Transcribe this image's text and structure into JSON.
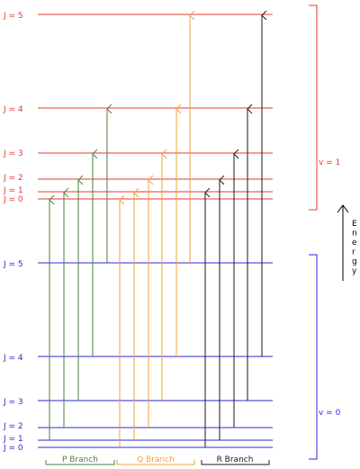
{
  "colors": {
    "upper": "#e8382f",
    "lower": "#2a2ad6",
    "p_branch": "#4e7f3e",
    "q_branch": "#f2a03a",
    "r_branch": "#1a1a1a"
  },
  "upper_levels": [
    {
      "label": "J = 5"
    },
    {
      "label": "J = 4"
    },
    {
      "label": "J = 3"
    },
    {
      "label": "J = 2"
    },
    {
      "label": "J = 1"
    },
    {
      "label": "J = 0"
    }
  ],
  "lower_levels": [
    {
      "label": "J = 5"
    },
    {
      "label": "J = 4"
    },
    {
      "label": "J = 3"
    },
    {
      "label": "J = 2"
    },
    {
      "label": "J = 1"
    },
    {
      "label": "J = 0"
    }
  ],
  "vib": {
    "upper_label": "v = 1",
    "lower_label": "v = 0"
  },
  "energy_label": "Energy",
  "branches": [
    {
      "name": "P Branch",
      "color_key": "p_branch"
    },
    {
      "name": "Q Branch",
      "color_key": "q_branch"
    },
    {
      "name": "R Branch",
      "color_key": "r_branch"
    }
  ]
}
